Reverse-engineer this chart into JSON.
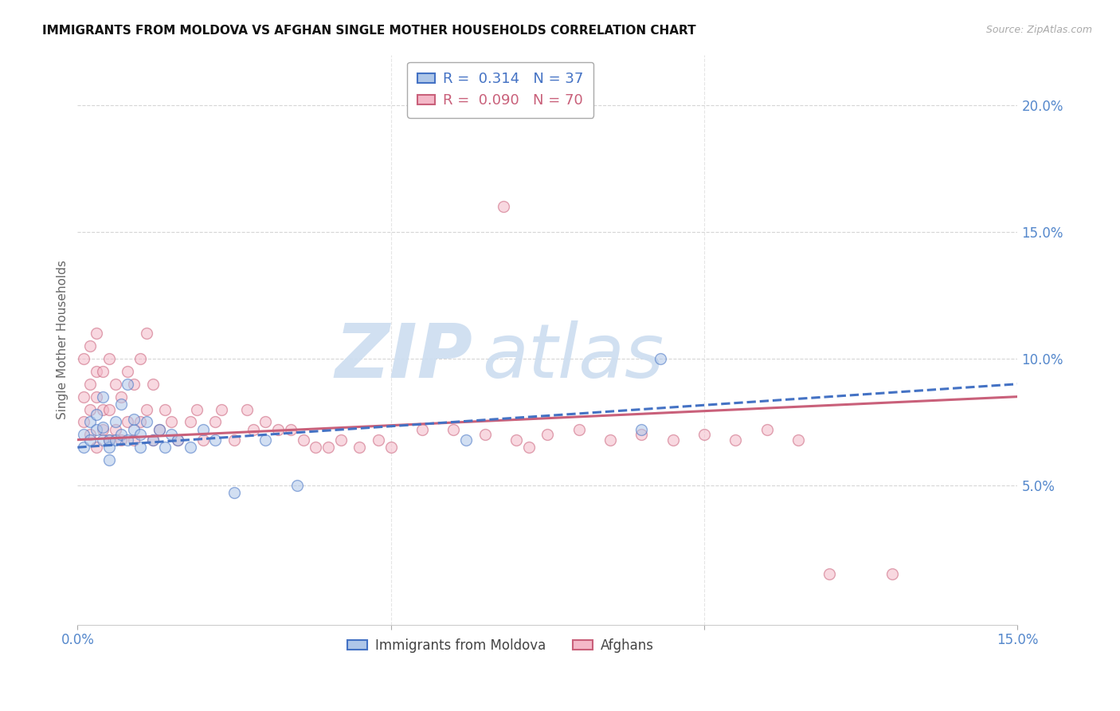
{
  "title": "IMMIGRANTS FROM MOLDOVA VS AFGHAN SINGLE MOTHER HOUSEHOLDS CORRELATION CHART",
  "source": "Source: ZipAtlas.com",
  "ylabel": "Single Mother Households",
  "xlim": [
    0.0,
    0.15
  ],
  "ylim": [
    -0.005,
    0.22
  ],
  "xtick_positions": [
    0.0,
    0.05,
    0.1,
    0.15
  ],
  "xtick_labels": [
    "0.0%",
    "",
    "",
    "15.0%"
  ],
  "yticks_right_vals": [
    0.05,
    0.1,
    0.15,
    0.2
  ],
  "yticks_right_labels": [
    "5.0%",
    "10.0%",
    "15.0%",
    "20.0%"
  ],
  "legend_entries": [
    {
      "label": "R =  0.314   N = 37",
      "face_color": "#aec6e8",
      "edge_color": "#4472c4"
    },
    {
      "label": "R =  0.090   N = 70",
      "face_color": "#f4b8c8",
      "edge_color": "#c9607a"
    }
  ],
  "legend_bottom": [
    {
      "label": "Immigrants from Moldova",
      "face_color": "#aec6e8",
      "edge_color": "#4472c4"
    },
    {
      "label": "Afghans",
      "face_color": "#f4b8c8",
      "edge_color": "#c9607a"
    }
  ],
  "moldova_scatter_color": "#aec6e8",
  "moldova_edge_color": "#4472c4",
  "afghan_scatter_color": "#f4b8c8",
  "afghan_edge_color": "#c9607a",
  "moldova_line_color": "#4472c4",
  "afghan_line_color": "#c9607a",
  "moldova_line_style": "--",
  "afghan_line_style": "-",
  "scatter_size": 100,
  "scatter_alpha": 0.55,
  "scatter_linewidth": 1.0,
  "background_color": "#ffffff",
  "grid_color": "#cccccc",
  "title_color": "#111111",
  "right_axis_color": "#5588cc",
  "watermark_zip": "ZIP",
  "watermark_atlas": "atlas",
  "watermark_color": "#ccddf0",
  "moldova_scatter_x": [
    0.001,
    0.001,
    0.002,
    0.002,
    0.003,
    0.003,
    0.004,
    0.004,
    0.004,
    0.005,
    0.005,
    0.005,
    0.006,
    0.006,
    0.007,
    0.007,
    0.008,
    0.008,
    0.009,
    0.009,
    0.01,
    0.01,
    0.011,
    0.012,
    0.013,
    0.014,
    0.015,
    0.016,
    0.018,
    0.02,
    0.022,
    0.025,
    0.03,
    0.035,
    0.062,
    0.09,
    0.093
  ],
  "moldova_scatter_y": [
    0.065,
    0.07,
    0.068,
    0.075,
    0.072,
    0.078,
    0.068,
    0.073,
    0.085,
    0.065,
    0.068,
    0.06,
    0.068,
    0.075,
    0.07,
    0.082,
    0.068,
    0.09,
    0.072,
    0.076,
    0.065,
    0.07,
    0.075,
    0.068,
    0.072,
    0.065,
    0.07,
    0.068,
    0.065,
    0.072,
    0.068,
    0.047,
    0.068,
    0.05,
    0.068,
    0.072,
    0.1
  ],
  "afghan_scatter_x": [
    0.001,
    0.001,
    0.001,
    0.002,
    0.002,
    0.002,
    0.002,
    0.003,
    0.003,
    0.003,
    0.003,
    0.004,
    0.004,
    0.004,
    0.005,
    0.005,
    0.005,
    0.006,
    0.006,
    0.007,
    0.007,
    0.008,
    0.008,
    0.009,
    0.009,
    0.01,
    0.01,
    0.011,
    0.011,
    0.012,
    0.012,
    0.013,
    0.014,
    0.015,
    0.016,
    0.018,
    0.019,
    0.02,
    0.022,
    0.023,
    0.025,
    0.027,
    0.028,
    0.03,
    0.032,
    0.034,
    0.036,
    0.038,
    0.04,
    0.042,
    0.045,
    0.048,
    0.05,
    0.055,
    0.06,
    0.065,
    0.068,
    0.07,
    0.072,
    0.075,
    0.08,
    0.085,
    0.09,
    0.095,
    0.1,
    0.105,
    0.11,
    0.115,
    0.12,
    0.13
  ],
  "afghan_scatter_y": [
    0.075,
    0.085,
    0.1,
    0.07,
    0.08,
    0.09,
    0.105,
    0.065,
    0.085,
    0.095,
    0.11,
    0.072,
    0.08,
    0.095,
    0.068,
    0.08,
    0.1,
    0.072,
    0.09,
    0.068,
    0.085,
    0.075,
    0.095,
    0.068,
    0.09,
    0.075,
    0.1,
    0.11,
    0.08,
    0.09,
    0.068,
    0.072,
    0.08,
    0.075,
    0.068,
    0.075,
    0.08,
    0.068,
    0.075,
    0.08,
    0.068,
    0.08,
    0.072,
    0.075,
    0.072,
    0.072,
    0.068,
    0.065,
    0.065,
    0.068,
    0.065,
    0.068,
    0.065,
    0.072,
    0.072,
    0.07,
    0.16,
    0.068,
    0.065,
    0.07,
    0.072,
    0.068,
    0.07,
    0.068,
    0.07,
    0.068,
    0.072,
    0.068,
    0.015,
    0.015
  ]
}
